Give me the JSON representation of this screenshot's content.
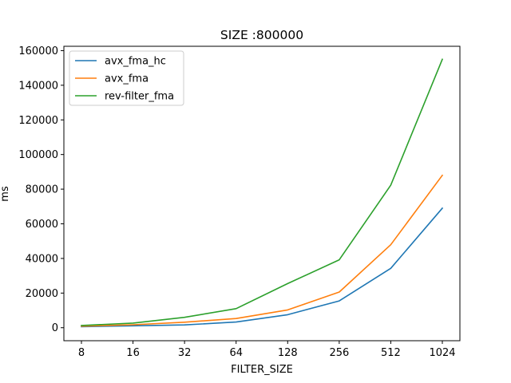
{
  "chart_data": {
    "type": "line",
    "title": "SIZE :800000",
    "xlabel": "FILTER_SIZE",
    "ylabel": "ms",
    "categories": [
      "8",
      "16",
      "32",
      "64",
      "128",
      "256",
      "512",
      "1024"
    ],
    "ylim": [
      -7500,
      162500
    ],
    "yticks": [
      0,
      20000,
      40000,
      60000,
      80000,
      100000,
      120000,
      140000,
      160000
    ],
    "ytick_labels": [
      "0",
      "20000",
      "40000",
      "60000",
      "80000",
      "100000",
      "120000",
      "140000",
      "160000"
    ],
    "grid": false,
    "legend_position": "top-left",
    "series": [
      {
        "name": "avx_fma_hc",
        "color": "#1f77b4",
        "values": [
          600,
          1100,
          1600,
          3300,
          7500,
          15500,
          34300,
          69000
        ]
      },
      {
        "name": "avx_fma",
        "color": "#ff7f0e",
        "values": [
          900,
          1700,
          3200,
          5300,
          10300,
          20600,
          47900,
          88000
        ]
      },
      {
        "name": "rev-filter_fma",
        "color": "#2ca02c",
        "values": [
          1300,
          2700,
          6000,
          11000,
          25500,
          39200,
          82300,
          155000
        ]
      }
    ]
  }
}
